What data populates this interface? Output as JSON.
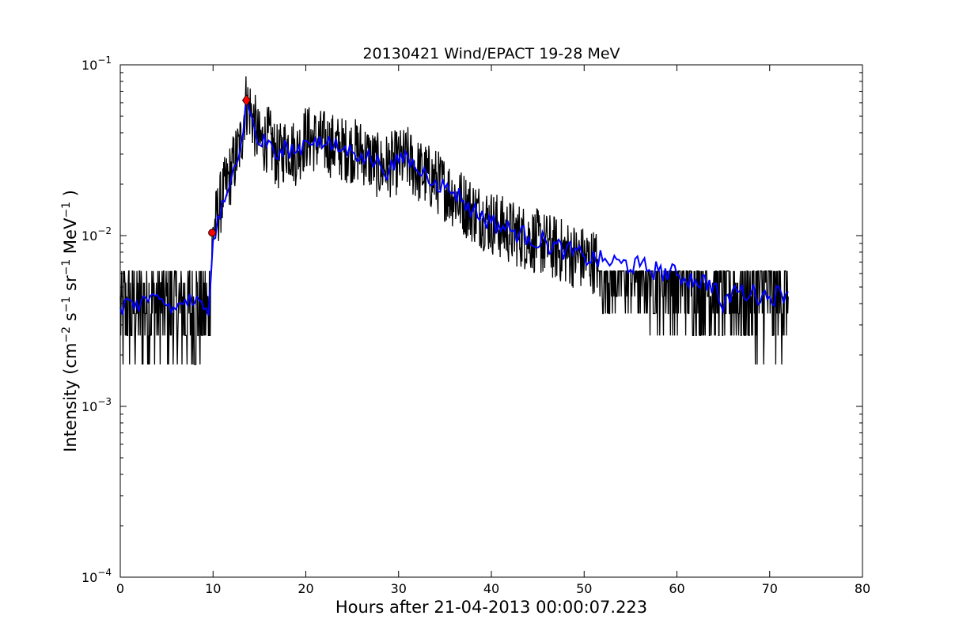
{
  "chart_data": {
    "type": "line",
    "title": "20130421 Wind/EPACT 19-28 MeV",
    "xlabel": "Hours after 21-04-2013 00:00:07.223",
    "ylabel": {
      "prefix": "Intensity (cm",
      "exp1": "−2",
      "s": " s",
      "exp2": "−1",
      "sr": " sr",
      "exp3": "−1",
      "mev": " MeV",
      "exp4": "−1",
      "suffix": " )"
    },
    "xlim": [
      0,
      80
    ],
    "ylim": [
      0.0001,
      0.1
    ],
    "yscale": "log",
    "grid": false,
    "xticks": [
      0,
      10,
      20,
      30,
      40,
      50,
      60,
      70,
      80
    ],
    "xtick_labels": [
      "0",
      "10",
      "20",
      "30",
      "40",
      "50",
      "60",
      "70",
      "80"
    ],
    "yticks": [
      {
        "value": 0.0001,
        "base": "10",
        "exp": "−4"
      },
      {
        "value": 0.001,
        "base": "10",
        "exp": "−3"
      },
      {
        "value": 0.01,
        "base": "10",
        "exp": "−2"
      },
      {
        "value": 0.1,
        "base": "10",
        "exp": "−1"
      }
    ],
    "series": [
      {
        "style": "raw",
        "color": "#000000",
        "x": [
          0,
          2,
          4,
          6,
          8,
          9.5,
          10,
          11,
          12,
          13,
          13.5,
          14,
          15,
          16,
          17,
          18,
          19,
          20,
          21,
          22,
          24,
          26,
          28,
          30,
          31,
          32,
          34,
          36,
          38,
          40,
          42,
          45,
          48,
          50,
          52,
          55,
          58,
          60,
          62,
          64,
          65,
          67,
          69,
          70,
          72
        ],
        "y": [
          0.0035,
          0.0038,
          0.004,
          0.0036,
          0.0038,
          0.0035,
          0.0105,
          0.017,
          0.024,
          0.035,
          0.06,
          0.055,
          0.035,
          0.037,
          0.028,
          0.034,
          0.03,
          0.038,
          0.036,
          0.035,
          0.032,
          0.031,
          0.025,
          0.027,
          0.028,
          0.024,
          0.021,
          0.017,
          0.014,
          0.012,
          0.0105,
          0.0092,
          0.008,
          0.0073,
          0.0069,
          0.0066,
          0.0062,
          0.0057,
          0.0054,
          0.005,
          0.0045,
          0.0045,
          0.0045,
          0.0045,
          0.0045
        ]
      },
      {
        "style": "smoothed",
        "color": "#0000ff",
        "x": [
          0,
          1,
          2,
          3,
          4,
          5,
          6,
          7,
          8,
          9,
          9.5,
          10,
          10.5,
          11,
          12,
          12.5,
          13,
          13.5,
          14,
          15,
          16,
          17,
          18,
          19,
          20,
          21,
          22,
          23,
          24,
          25,
          26,
          27,
          28,
          29,
          30,
          31,
          32,
          33,
          34,
          35,
          36,
          37,
          38,
          40,
          42,
          44,
          46,
          48,
          50,
          52,
          54,
          56,
          58,
          60,
          62,
          64,
          65,
          66,
          68,
          70,
          72
        ],
        "y": [
          0.0038,
          0.0042,
          0.0036,
          0.0041,
          0.0045,
          0.0039,
          0.0037,
          0.0042,
          0.004,
          0.0037,
          0.0034,
          0.0095,
          0.013,
          0.016,
          0.022,
          0.026,
          0.034,
          0.058,
          0.052,
          0.034,
          0.036,
          0.028,
          0.033,
          0.031,
          0.036,
          0.037,
          0.034,
          0.033,
          0.032,
          0.031,
          0.03,
          0.028,
          0.026,
          0.024,
          0.027,
          0.029,
          0.024,
          0.023,
          0.021,
          0.019,
          0.018,
          0.016,
          0.014,
          0.012,
          0.0108,
          0.0098,
          0.009,
          0.0082,
          0.0075,
          0.0071,
          0.0069,
          0.0066,
          0.0062,
          0.0059,
          0.0055,
          0.0052,
          0.0036,
          0.0048,
          0.0046,
          0.0044,
          0.0047
        ]
      }
    ],
    "markers": [
      {
        "x": 9.9,
        "y": 0.0104,
        "color": "#ff0000",
        "shape": "circle"
      },
      {
        "x": 13.6,
        "y": 0.062,
        "color": "#ff0000",
        "shape": "diamond"
      }
    ]
  }
}
